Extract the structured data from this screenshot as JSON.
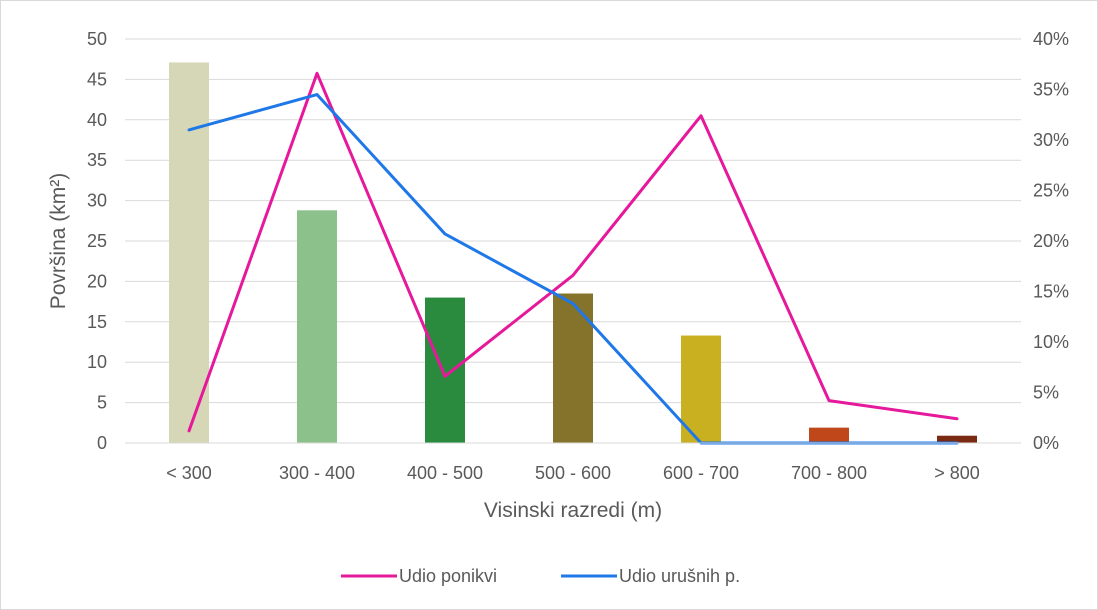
{
  "chart_data": {
    "type": "bar",
    "categories": [
      "< 300",
      "300 - 400",
      "400 - 500",
      "500 - 600",
      "600 - 700",
      "700 - 800",
      "> 800"
    ],
    "bars": {
      "values": [
        47.1,
        28.8,
        18.0,
        18.5,
        13.3,
        1.9,
        0.9
      ],
      "colors": [
        "#d6d7b7",
        "#8dc18b",
        "#2a8a3e",
        "#85722b",
        "#c9b020",
        "#c0471a",
        "#7a2a12"
      ]
    },
    "series": [
      {
        "name": "Udio ponikvi",
        "axis": "right",
        "color": "#e6189b",
        "values": [
          0.012,
          0.366,
          0.066,
          0.166,
          0.324,
          0.042,
          0.024
        ]
      },
      {
        "name": "Udio urušnih p.",
        "axis": "right",
        "color": "#1f78e8",
        "values": [
          0.31,
          0.345,
          0.207,
          0.138,
          0.0,
          0.0,
          0.0
        ]
      }
    ],
    "xlabel": "Visinski razredi (m)",
    "ylabel": "Površina (km²)",
    "ylim": [
      0,
      50
    ],
    "y_ticks": [
      "0",
      "5",
      "10",
      "15",
      "20",
      "25",
      "30",
      "35",
      "40",
      "45",
      "50"
    ],
    "y2lim": [
      0,
      0.4
    ],
    "y2_ticks": [
      "0%",
      "5%",
      "10%",
      "15%",
      "20%",
      "25%",
      "30%",
      "35%",
      "40%"
    ],
    "grid": true,
    "legend": "bottom"
  }
}
